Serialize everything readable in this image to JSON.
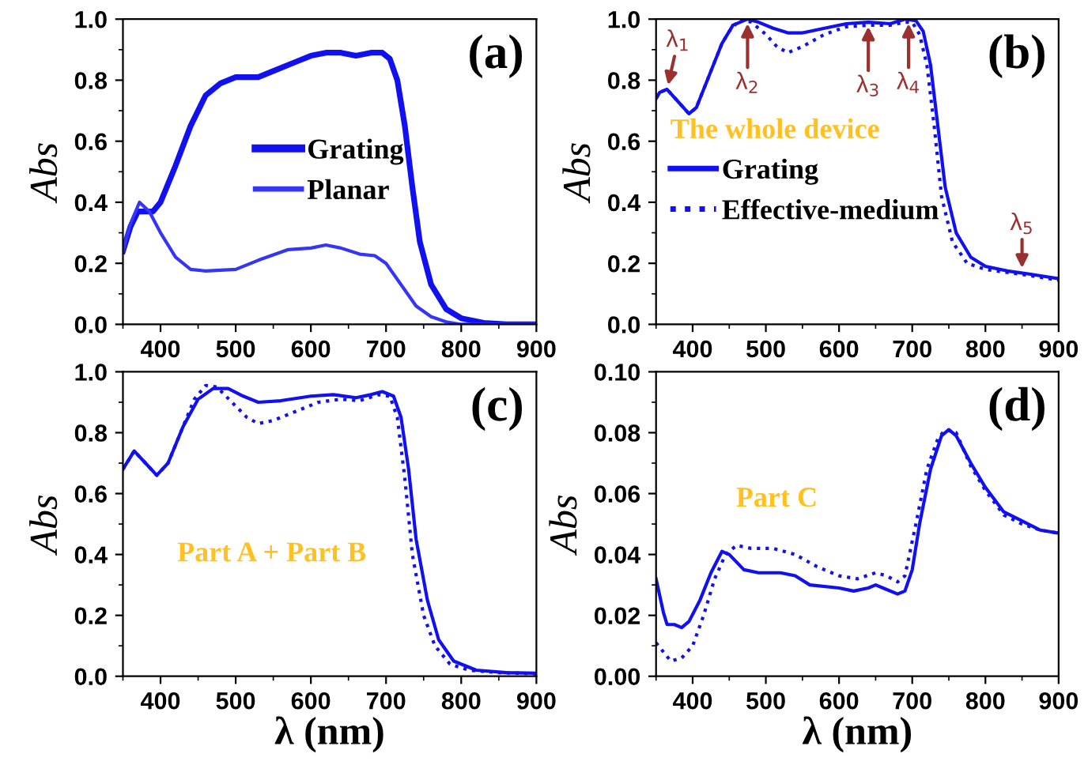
{
  "chart_data": [
    {
      "type": "line",
      "ylabel": "Abs",
      "xlim": [
        350,
        900
      ],
      "xticks": [
        400,
        500,
        600,
        700,
        800,
        900
      ],
      "ylim": [
        0,
        1.0
      ],
      "yticks": [
        {
          "value": 0,
          "label": "0.0"
        },
        {
          "value": 0.2,
          "label": "0.2"
        },
        {
          "value": 0.4,
          "label": "0.4"
        },
        {
          "value": 0.6,
          "label": "0.6"
        },
        {
          "value": 0.8,
          "label": "0.8"
        },
        {
          "value": 1.0,
          "label": "1.0"
        }
      ],
      "legend": "center",
      "grid": false,
      "annotations": [
        "(a)"
      ],
      "series": [
        {
          "name": "Grating",
          "color": "#1010f0",
          "line_style": "solid",
          "x": [
            350,
            360,
            370,
            380,
            390,
            400,
            420,
            440,
            460,
            480,
            500,
            530,
            550,
            580,
            600,
            620,
            640,
            660,
            680,
            695,
            705,
            715,
            725,
            735,
            745,
            760,
            780,
            800,
            830,
            860,
            900
          ],
          "values": [
            0.24,
            0.32,
            0.37,
            0.37,
            0.37,
            0.4,
            0.52,
            0.65,
            0.75,
            0.79,
            0.81,
            0.81,
            0.83,
            0.86,
            0.88,
            0.89,
            0.89,
            0.88,
            0.89,
            0.89,
            0.87,
            0.8,
            0.65,
            0.45,
            0.27,
            0.13,
            0.05,
            0.02,
            0.005,
            0.0,
            0.0
          ]
        },
        {
          "name": "Planar",
          "color": "#3535f5",
          "line_style": "solid",
          "x": [
            350,
            360,
            372,
            385,
            400,
            420,
            440,
            460,
            500,
            530,
            570,
            600,
            620,
            640,
            665,
            685,
            700,
            720,
            740,
            760,
            780,
            800,
            900
          ],
          "values": [
            0.24,
            0.33,
            0.4,
            0.37,
            0.3,
            0.22,
            0.18,
            0.175,
            0.18,
            0.21,
            0.245,
            0.25,
            0.26,
            0.25,
            0.23,
            0.225,
            0.2,
            0.13,
            0.06,
            0.025,
            0.008,
            0.0,
            0.0
          ]
        }
      ]
    },
    {
      "type": "line",
      "ylabel": "Abs",
      "xlim": [
        350,
        900
      ],
      "xticks": [
        400,
        500,
        600,
        700,
        800,
        900
      ],
      "ylim": [
        0,
        1.0
      ],
      "yticks": [
        {
          "value": 0,
          "label": "0.0"
        },
        {
          "value": 0.2,
          "label": "0.2"
        },
        {
          "value": 0.4,
          "label": "0.4"
        },
        {
          "value": 0.6,
          "label": "0.6"
        },
        {
          "value": 0.8,
          "label": "0.8"
        },
        {
          "value": 1.0,
          "label": "1.0"
        }
      ],
      "legend": "center left",
      "legend_title": "The whole device",
      "grid": false,
      "annotations": [
        "(b)",
        {
          "text": "λ$_{1}$",
          "x": 365,
          "y": 0.77
        },
        {
          "text": "λ$_{2}$",
          "x": 475,
          "y": 1.0
        },
        {
          "text": "λ$_{3}$",
          "x": 640,
          "y": 0.99
        },
        {
          "text": "λ$_{4}$",
          "x": 695,
          "y": 1.0
        },
        {
          "text": "λ$_{5}$",
          "x": 850,
          "y": 0.17
        }
      ],
      "series": [
        {
          "name": "Grating",
          "color": "#1010f0",
          "line_style": "solid",
          "x": [
            350,
            355,
            365,
            380,
            395,
            405,
            420,
            440,
            455,
            475,
            490,
            510,
            530,
            550,
            580,
            610,
            640,
            670,
            690,
            705,
            715,
            725,
            735,
            745,
            760,
            780,
            800,
            830,
            860,
            900
          ],
          "values": [
            0.74,
            0.76,
            0.77,
            0.73,
            0.69,
            0.71,
            0.8,
            0.92,
            0.98,
            1.0,
            0.99,
            0.97,
            0.955,
            0.955,
            0.97,
            0.985,
            0.99,
            0.985,
            1.0,
            0.995,
            0.96,
            0.85,
            0.65,
            0.45,
            0.3,
            0.22,
            0.19,
            0.175,
            0.165,
            0.15
          ]
        },
        {
          "name": "Effective-medium",
          "color": "#1010f0",
          "line_style": "dotted",
          "x": [
            350,
            355,
            365,
            380,
            395,
            405,
            420,
            440,
            450,
            465,
            480,
            500,
            515,
            530,
            550,
            580,
            610,
            640,
            670,
            690,
            700,
            710,
            720,
            730,
            740,
            755,
            775,
            800,
            830,
            860,
            900
          ],
          "values": [
            0.74,
            0.76,
            0.77,
            0.73,
            0.69,
            0.71,
            0.8,
            0.92,
            0.96,
            1.0,
            0.99,
            0.95,
            0.91,
            0.89,
            0.91,
            0.95,
            0.975,
            0.98,
            0.98,
            0.99,
            0.99,
            0.95,
            0.85,
            0.65,
            0.42,
            0.27,
            0.2,
            0.18,
            0.17,
            0.16,
            0.145
          ]
        }
      ]
    },
    {
      "type": "line",
      "xlabel": "λ (nm)",
      "ylabel": "Abs",
      "xlim": [
        350,
        900
      ],
      "xticks": [
        400,
        500,
        600,
        700,
        800,
        900
      ],
      "ylim": [
        0,
        1.0
      ],
      "yticks": [
        {
          "value": 0,
          "label": "0.0"
        },
        {
          "value": 0.2,
          "label": "0.2"
        },
        {
          "value": 0.4,
          "label": "0.4"
        },
        {
          "value": 0.6,
          "label": "0.6"
        },
        {
          "value": 0.8,
          "label": "0.8"
        },
        {
          "value": 1.0,
          "label": "1.0"
        }
      ],
      "grid": false,
      "annotations": [
        "(c)",
        "Part A + Part B"
      ],
      "series": [
        {
          "color": "#1010f0",
          "line_style": "solid",
          "x": [
            350,
            365,
            380,
            395,
            410,
            430,
            450,
            470,
            490,
            510,
            530,
            560,
            600,
            630,
            660,
            680,
            695,
            710,
            720,
            730,
            740,
            755,
            770,
            790,
            820,
            860,
            900
          ],
          "values": [
            0.68,
            0.74,
            0.7,
            0.66,
            0.7,
            0.82,
            0.91,
            0.945,
            0.945,
            0.92,
            0.9,
            0.905,
            0.92,
            0.925,
            0.915,
            0.925,
            0.935,
            0.92,
            0.85,
            0.68,
            0.45,
            0.25,
            0.12,
            0.05,
            0.02,
            0.012,
            0.01
          ]
        },
        {
          "color": "#1010f0",
          "line_style": "dotted",
          "x": [
            350,
            365,
            380,
            395,
            410,
            430,
            445,
            460,
            475,
            495,
            515,
            530,
            550,
            580,
            610,
            640,
            665,
            690,
            705,
            715,
            725,
            735,
            750,
            765,
            785,
            810,
            850,
            900
          ],
          "values": [
            0.68,
            0.74,
            0.7,
            0.66,
            0.7,
            0.82,
            0.91,
            0.955,
            0.95,
            0.9,
            0.85,
            0.83,
            0.84,
            0.87,
            0.9,
            0.91,
            0.905,
            0.925,
            0.92,
            0.85,
            0.65,
            0.4,
            0.2,
            0.1,
            0.04,
            0.02,
            0.012,
            0.008
          ]
        }
      ]
    },
    {
      "type": "line",
      "xlabel": "λ (nm)",
      "ylabel": "Abs",
      "xlim": [
        350,
        900
      ],
      "xticks": [
        400,
        500,
        600,
        700,
        800,
        900
      ],
      "ylim": [
        0,
        0.1
      ],
      "yticks": [
        {
          "value": 0,
          "label": "0.00"
        },
        {
          "value": 0.02,
          "label": "0.02"
        },
        {
          "value": 0.04,
          "label": "0.04"
        },
        {
          "value": 0.06,
          "label": "0.06"
        },
        {
          "value": 0.08,
          "label": "0.08"
        },
        {
          "value": 0.1,
          "label": "0.10"
        }
      ],
      "grid": false,
      "annotations": [
        "(d)",
        "Part C"
      ],
      "series": [
        {
          "color": "#1010f0",
          "line_style": "solid",
          "x": [
            350,
            360,
            365,
            375,
            385,
            395,
            410,
            425,
            440,
            450,
            470,
            490,
            520,
            540,
            560,
            600,
            620,
            640,
            650,
            660,
            680,
            690,
            700,
            710,
            725,
            740,
            750,
            760,
            780,
            800,
            825,
            850,
            875,
            900
          ],
          "values": [
            0.032,
            0.021,
            0.017,
            0.017,
            0.016,
            0.018,
            0.025,
            0.034,
            0.041,
            0.04,
            0.035,
            0.034,
            0.034,
            0.033,
            0.03,
            0.029,
            0.028,
            0.029,
            0.03,
            0.029,
            0.027,
            0.028,
            0.035,
            0.05,
            0.068,
            0.079,
            0.081,
            0.079,
            0.07,
            0.062,
            0.054,
            0.051,
            0.048,
            0.047
          ]
        },
        {
          "color": "#1010f0",
          "line_style": "dotted",
          "x": [
            350,
            360,
            370,
            385,
            400,
            415,
            430,
            445,
            460,
            480,
            510,
            540,
            570,
            600,
            625,
            650,
            665,
            680,
            690,
            705,
            720,
            735,
            745,
            760,
            780,
            800,
            825,
            850,
            875,
            900
          ],
          "values": [
            0.011,
            0.008,
            0.005,
            0.006,
            0.01,
            0.02,
            0.032,
            0.04,
            0.043,
            0.042,
            0.042,
            0.04,
            0.036,
            0.033,
            0.032,
            0.034,
            0.033,
            0.031,
            0.033,
            0.05,
            0.068,
            0.078,
            0.081,
            0.08,
            0.069,
            0.061,
            0.053,
            0.05,
            0.048,
            0.047
          ]
        }
      ]
    }
  ]
}
